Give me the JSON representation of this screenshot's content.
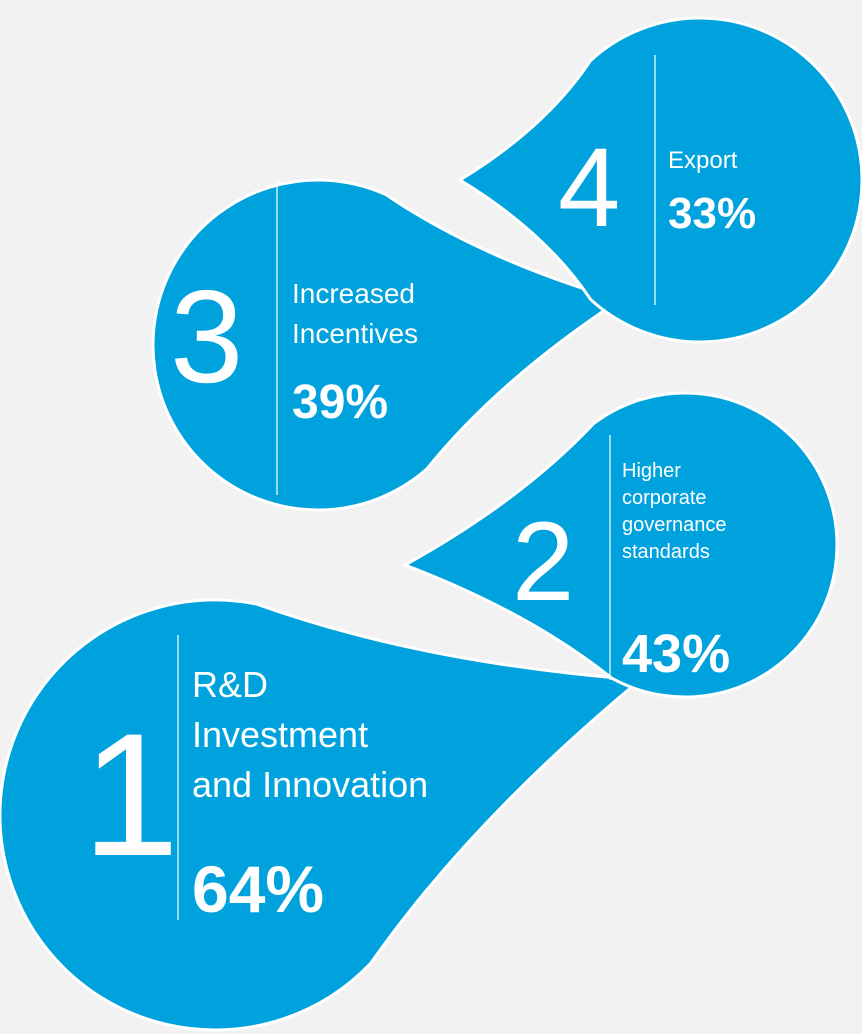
{
  "nodes": [
    {
      "rank": "1",
      "label": [
        "R&D",
        "Investment",
        "and Innovation"
      ],
      "value": "64%"
    },
    {
      "rank": "2",
      "label": [
        "Higher",
        "corporate",
        "governance",
        "standards"
      ],
      "value": "43%"
    },
    {
      "rank": "3",
      "label": [
        "Increased",
        "Incentives"
      ],
      "value": "39%"
    },
    {
      "rank": "4",
      "label": [
        "Export"
      ],
      "value": "33%"
    }
  ]
}
